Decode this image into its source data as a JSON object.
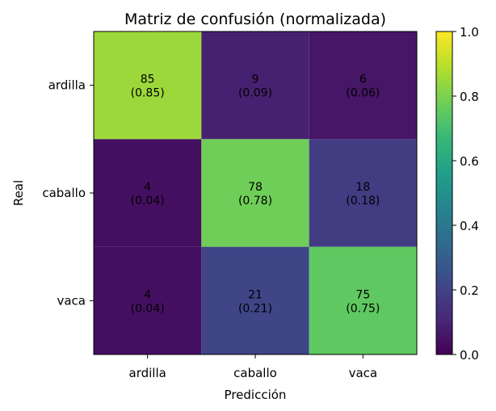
{
  "chart_data": {
    "type": "heatmap",
    "title": "Matriz de confusión (normalizada)",
    "xlabel": "Predicción",
    "ylabel": "Real",
    "x_categories": [
      "ardilla",
      "caballo",
      "vaca"
    ],
    "y_categories": [
      "ardilla",
      "caballo",
      "vaca"
    ],
    "counts": [
      [
        85,
        9,
        6
      ],
      [
        4,
        78,
        18
      ],
      [
        4,
        21,
        75
      ]
    ],
    "normalized": [
      [
        0.85,
        0.09,
        0.06
      ],
      [
        0.04,
        0.78,
        0.18
      ],
      [
        0.04,
        0.21,
        0.75
      ]
    ],
    "cell_labels": [
      [
        [
          "85",
          "(0.85)"
        ],
        [
          "9",
          "(0.09)"
        ],
        [
          "6",
          "(0.06)"
        ]
      ],
      [
        [
          "4",
          "(0.04)"
        ],
        [
          "78",
          "(0.78)"
        ],
        [
          "18",
          "(0.18)"
        ]
      ],
      [
        [
          "4",
          "(0.04)"
        ],
        [
          "21",
          "(0.21)"
        ],
        [
          "75",
          "(0.75)"
        ]
      ]
    ],
    "colormap": "viridis",
    "colorbar": {
      "range": [
        0,
        1
      ],
      "ticks": [
        0.0,
        0.2,
        0.4,
        0.6,
        0.8,
        1.0
      ],
      "tick_labels": [
        "0.0",
        "0.2",
        "0.4",
        "0.6",
        "0.8",
        "1.0"
      ]
    },
    "grid": false
  }
}
